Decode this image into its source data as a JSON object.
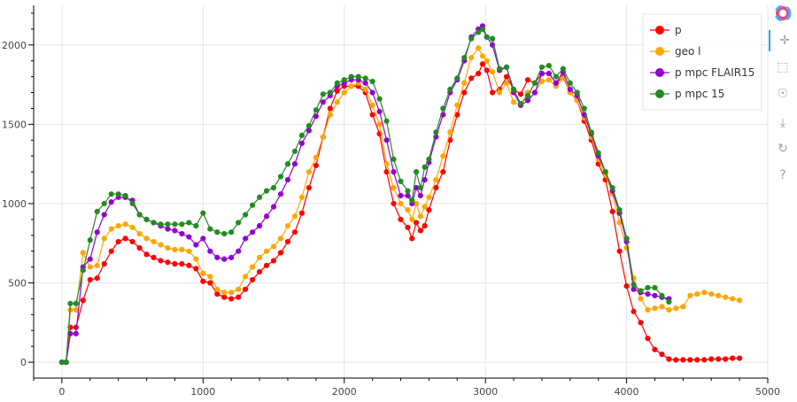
{
  "chart_data": {
    "type": "line",
    "title": "",
    "xlabel": "",
    "ylabel": "",
    "xlim": [
      -200,
      5000
    ],
    "ylim": [
      -100,
      2250
    ],
    "x_ticks": [
      0,
      1000,
      2000,
      3000,
      4000,
      5000
    ],
    "y_ticks": [
      0,
      500,
      1000,
      1500,
      2000
    ],
    "x_tick_labels": [
      "0",
      "1000",
      "2000",
      "3000",
      "4000",
      "5000"
    ],
    "y_tick_labels": [
      "0",
      "500",
      "1000",
      "1500",
      "2000"
    ],
    "grid": true,
    "legend_position": "top-right",
    "series": [
      {
        "name": "p",
        "color": "#ff0000",
        "x": [
          0,
          30,
          60,
          100,
          150,
          200,
          250,
          300,
          350,
          400,
          450,
          500,
          550,
          600,
          650,
          700,
          750,
          800,
          850,
          900,
          950,
          1000,
          1050,
          1100,
          1150,
          1200,
          1250,
          1300,
          1350,
          1400,
          1450,
          1500,
          1550,
          1600,
          1650,
          1700,
          1750,
          1800,
          1850,
          1900,
          1950,
          2000,
          2050,
          2100,
          2150,
          2200,
          2250,
          2300,
          2350,
          2400,
          2450,
          2480,
          2510,
          2540,
          2570,
          2600,
          2650,
          2700,
          2750,
          2800,
          2850,
          2900,
          2950,
          2980,
          3010,
          3050,
          3100,
          3150,
          3200,
          3250,
          3300,
          3350,
          3400,
          3450,
          3500,
          3550,
          3600,
          3650,
          3700,
          3750,
          3800,
          3850,
          3900,
          3950,
          4000,
          4050,
          4100,
          4150,
          4200,
          4250,
          4300,
          4350,
          4400,
          4450,
          4500,
          4550,
          4600,
          4650,
          4700,
          4750,
          4800
        ],
        "y": [
          0,
          0,
          220,
          220,
          390,
          520,
          530,
          620,
          700,
          760,
          780,
          760,
          720,
          680,
          660,
          640,
          630,
          620,
          620,
          610,
          590,
          510,
          500,
          430,
          410,
          400,
          410,
          460,
          520,
          570,
          610,
          640,
          690,
          760,
          820,
          940,
          1100,
          1240,
          1420,
          1600,
          1710,
          1740,
          1740,
          1740,
          1700,
          1560,
          1440,
          1200,
          1000,
          900,
          850,
          780,
          880,
          830,
          860,
          960,
          1100,
          1200,
          1400,
          1560,
          1700,
          1790,
          1820,
          1880,
          1840,
          1700,
          1720,
          1800,
          1720,
          1690,
          1780,
          1760,
          1820,
          1820,
          1760,
          1800,
          1700,
          1650,
          1520,
          1400,
          1250,
          1150,
          950,
          700,
          480,
          320,
          250,
          150,
          80,
          50,
          20,
          15,
          15,
          15,
          15,
          15,
          20,
          20,
          20,
          25,
          25
        ]
      },
      {
        "name": "geo l",
        "color": "#ffa500",
        "x": [
          0,
          30,
          60,
          100,
          150,
          200,
          250,
          300,
          350,
          400,
          450,
          500,
          550,
          600,
          650,
          700,
          750,
          800,
          850,
          900,
          950,
          1000,
          1050,
          1100,
          1150,
          1200,
          1250,
          1300,
          1350,
          1400,
          1450,
          1500,
          1550,
          1600,
          1650,
          1700,
          1750,
          1800,
          1850,
          1900,
          1950,
          2000,
          2050,
          2100,
          2150,
          2200,
          2250,
          2300,
          2350,
          2400,
          2450,
          2480,
          2510,
          2540,
          2570,
          2600,
          2650,
          2700,
          2750,
          2800,
          2850,
          2900,
          2950,
          2980,
          3010,
          3050,
          3100,
          3150,
          3200,
          3250,
          3300,
          3350,
          3400,
          3450,
          3500,
          3550,
          3600,
          3650,
          3700,
          3750,
          3800,
          3850,
          3900,
          3950,
          4000,
          4050,
          4100,
          4150,
          4200,
          4250,
          4300,
          4350,
          4400,
          4450,
          4500,
          4550,
          4600,
          4650,
          4700,
          4750,
          4800
        ],
        "y": [
          0,
          0,
          330,
          330,
          690,
          600,
          610,
          780,
          840,
          860,
          870,
          850,
          810,
          780,
          760,
          740,
          720,
          710,
          710,
          700,
          650,
          560,
          540,
          460,
          440,
          440,
          460,
          540,
          600,
          660,
          700,
          730,
          780,
          860,
          920,
          1040,
          1200,
          1290,
          1420,
          1560,
          1640,
          1700,
          1740,
          1760,
          1720,
          1620,
          1500,
          1250,
          1100,
          1000,
          960,
          900,
          1000,
          920,
          980,
          1040,
          1150,
          1300,
          1450,
          1620,
          1760,
          1920,
          1980,
          1930,
          1900,
          1830,
          1700,
          1760,
          1640,
          1620,
          1700,
          1700,
          1770,
          1780,
          1740,
          1790,
          1700,
          1650,
          1540,
          1420,
          1280,
          1180,
          1060,
          880,
          720,
          530,
          400,
          330,
          340,
          350,
          330,
          340,
          350,
          420,
          430,
          440,
          430,
          420,
          410,
          400,
          390
        ]
      },
      {
        "name": "p mpc FLAIR15",
        "color": "#9400d3",
        "x": [
          0,
          30,
          60,
          100,
          150,
          200,
          250,
          300,
          350,
          400,
          450,
          500,
          550,
          600,
          650,
          700,
          750,
          800,
          850,
          900,
          950,
          1000,
          1050,
          1100,
          1150,
          1200,
          1250,
          1300,
          1350,
          1400,
          1450,
          1500,
          1550,
          1600,
          1650,
          1700,
          1750,
          1800,
          1850,
          1900,
          1950,
          2000,
          2050,
          2100,
          2150,
          2200,
          2250,
          2300,
          2350,
          2400,
          2450,
          2480,
          2510,
          2540,
          2570,
          2600,
          2650,
          2700,
          2750,
          2800,
          2850,
          2900,
          2950,
          2980,
          3010,
          3050,
          3100,
          3150,
          3200,
          3250,
          3300,
          3350,
          3400,
          3450,
          3500,
          3550,
          3600,
          3650,
          3700,
          3750,
          3800,
          3850,
          3900,
          3950,
          4000,
          4050,
          4100,
          4150,
          4200,
          4250,
          4300
        ],
        "y": [
          0,
          0,
          180,
          180,
          600,
          650,
          820,
          930,
          1010,
          1040,
          1040,
          1020,
          930,
          900,
          880,
          860,
          840,
          830,
          810,
          790,
          740,
          780,
          700,
          660,
          650,
          660,
          700,
          780,
          820,
          860,
          920,
          980,
          1060,
          1150,
          1250,
          1380,
          1460,
          1550,
          1640,
          1680,
          1740,
          1760,
          1780,
          1780,
          1760,
          1700,
          1580,
          1400,
          1200,
          1050,
          1050,
          1000,
          1100,
          1050,
          1150,
          1260,
          1420,
          1560,
          1700,
          1780,
          1900,
          2050,
          2100,
          2120,
          2050,
          2000,
          1840,
          1860,
          1700,
          1620,
          1650,
          1700,
          1820,
          1820,
          1760,
          1830,
          1720,
          1680,
          1560,
          1440,
          1300,
          1200,
          1080,
          940,
          760,
          460,
          440,
          430,
          420,
          410,
          400
        ]
      },
      {
        "name": "p mpc 15",
        "color": "#228b22",
        "x": [
          0,
          30,
          60,
          100,
          150,
          200,
          250,
          300,
          350,
          400,
          450,
          500,
          550,
          600,
          650,
          700,
          750,
          800,
          850,
          900,
          950,
          1000,
          1050,
          1100,
          1150,
          1200,
          1250,
          1300,
          1350,
          1400,
          1450,
          1500,
          1550,
          1600,
          1650,
          1700,
          1750,
          1800,
          1850,
          1900,
          1950,
          2000,
          2050,
          2100,
          2150,
          2200,
          2250,
          2300,
          2350,
          2400,
          2450,
          2480,
          2510,
          2540,
          2570,
          2600,
          2650,
          2700,
          2750,
          2800,
          2850,
          2900,
          2950,
          2980,
          3010,
          3050,
          3100,
          3150,
          3200,
          3250,
          3300,
          3350,
          3400,
          3450,
          3500,
          3550,
          3600,
          3650,
          3700,
          3750,
          3800,
          3850,
          3900,
          3950,
          4000,
          4050,
          4100,
          4150,
          4200,
          4250,
          4300
        ],
        "y": [
          0,
          0,
          370,
          370,
          580,
          770,
          950,
          1000,
          1060,
          1060,
          1050,
          1000,
          930,
          900,
          880,
          870,
          870,
          870,
          870,
          880,
          860,
          940,
          840,
          820,
          810,
          820,
          880,
          930,
          990,
          1040,
          1080,
          1100,
          1170,
          1250,
          1330,
          1430,
          1490,
          1590,
          1690,
          1700,
          1760,
          1780,
          1800,
          1800,
          1790,
          1770,
          1660,
          1520,
          1280,
          1140,
          1080,
          1020,
          1200,
          1100,
          1230,
          1280,
          1450,
          1600,
          1720,
          1790,
          1920,
          2040,
          2080,
          2100,
          2050,
          2040,
          1850,
          1860,
          1720,
          1630,
          1680,
          1760,
          1860,
          1870,
          1800,
          1850,
          1760,
          1700,
          1600,
          1450,
          1320,
          1200,
          1100,
          960,
          780,
          490,
          450,
          470,
          470,
          420,
          380
        ]
      }
    ]
  },
  "toolbar": {
    "icons": [
      "bokeh-logo-icon",
      "pan-icon",
      "box-zoom-icon",
      "wheel-zoom-icon",
      "save-icon",
      "reset-icon",
      "help-icon"
    ]
  }
}
